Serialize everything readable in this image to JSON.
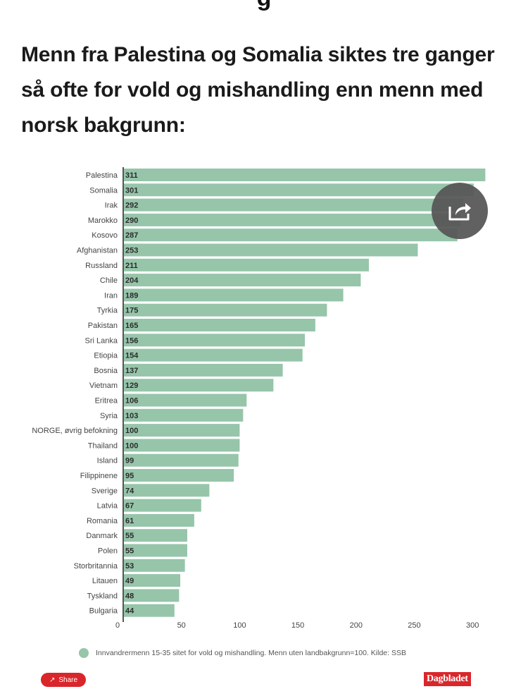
{
  "header": {
    "cut_text": "g",
    "headline": "Menn fra Palestina og Somalia siktes tre ganger så ofte for vold og mishandling enn menn med norsk bakgrunn:"
  },
  "chart_data": {
    "type": "bar",
    "orientation": "horizontal",
    "categories": [
      "Palestina",
      "Somalia",
      "Irak",
      "Marokko",
      "Kosovo",
      "Afghanistan",
      "Russland",
      "Chile",
      "Iran",
      "Tyrkia",
      "Pakistan",
      "Sri Lanka",
      "Etiopia",
      "Bosnia",
      "Vietnam",
      "Eritrea",
      "Syria",
      "NORGE, øvrig befokning",
      "Thailand",
      "Island",
      "Filippinene",
      "Sverige",
      "Latvia",
      "Romania",
      "Danmark",
      "Polen",
      "Storbritannia",
      "Litauen",
      "Tyskland",
      "Bulgaria"
    ],
    "series": [
      {
        "name": "Innvandrermenn 15-35 sitet for vold og mishandling. Menn uten landbakgrunn=100. Kilde: SSB",
        "values": [
          311,
          301,
          292,
          290,
          287,
          253,
          211,
          204,
          189,
          175,
          165,
          156,
          154,
          137,
          129,
          106,
          103,
          100,
          100,
          99,
          95,
          74,
          67,
          61,
          55,
          55,
          53,
          49,
          48,
          44
        ],
        "color": "#96c5aa"
      }
    ],
    "title": "",
    "xlabel": "",
    "ylabel": "",
    "xlim": [
      0,
      315
    ],
    "xticks": [
      0,
      50,
      100,
      150,
      200,
      250,
      300
    ],
    "grid": false,
    "legend_position": "bottom",
    "data_labels": true
  },
  "legend": {
    "label": "Innvandrermenn 15-35 sitet for vold og mishandling. Menn uten landbakgrunn=100. Kilde: SSB"
  },
  "controls": {
    "share_label": "Share",
    "share_fab_icon": "share-icon"
  },
  "branding": {
    "logo_text": "Dagbladet",
    "color": "#d9262b"
  }
}
